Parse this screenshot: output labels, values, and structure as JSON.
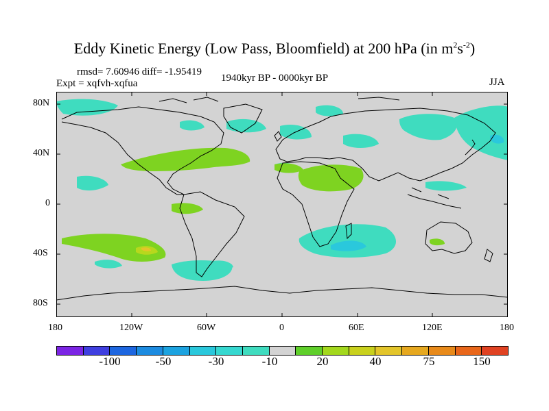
{
  "title": {
    "main": "Eddy Kinetic Energy (Low Pass, Bloomfield) at 200 hPa (in m",
    "sup1": "2",
    "mid": "s",
    "sup2": "-2",
    "end": ")"
  },
  "header": {
    "stats": "rmsd= 7.60946 diff= -1.95419",
    "expt": "Expt = xqfvh-xqfua",
    "period": "1940kyr BP - 0000kyr BP",
    "season": "JJA"
  },
  "axes": {
    "lat_ticks": [
      "80N",
      "40N",
      "0",
      "40S",
      "80S"
    ],
    "lon_ticks": [
      "180",
      "120W",
      "60W",
      "0",
      "60E",
      "120E",
      "180"
    ]
  },
  "colors": {
    "background": "#d3d3d3",
    "coast": "#000000",
    "neg_light": "#3fdcbf",
    "neg_mid": "#2ac8dc",
    "neg_strong": "#1ca3e0",
    "pos_light": "#7ed321",
    "pos_mid": "#b7d81d",
    "pos_strong": "#e3c52a"
  },
  "colorbar": {
    "colors": [
      "#7b24e4",
      "#3f3fe0",
      "#1d66e0",
      "#1c8be0",
      "#1ca3e0",
      "#2ac8dc",
      "#36d8d0",
      "#3fdcbf",
      "#d3d3d3",
      "#5fcf2a",
      "#a3d81d",
      "#c9d11d",
      "#e3c52a",
      "#e6a81f",
      "#e88a1a",
      "#e8661a",
      "#e04222"
    ],
    "labels": [
      "-100",
      "-50",
      "-30",
      "-10",
      "20",
      "40",
      "75",
      "150"
    ]
  }
}
